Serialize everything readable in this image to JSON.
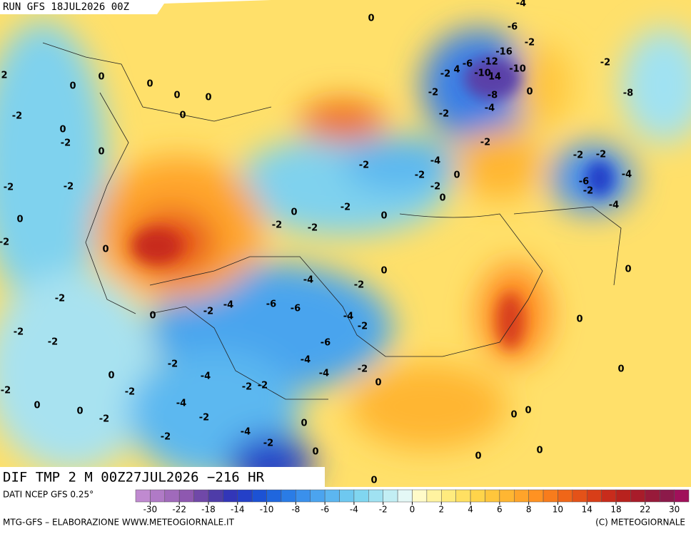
{
  "header": {
    "run": "RUN GFS 18JUL2026 00Z"
  },
  "map": {
    "contour_labels": [
      0,
      -4,
      -6,
      -2,
      -16,
      -12,
      -2,
      4,
      -6,
      -10,
      14,
      -10,
      0,
      -8,
      -4,
      -2,
      -2,
      -2,
      -2,
      -8,
      -2,
      -2,
      -6,
      -2,
      -4,
      -4,
      -4,
      -2,
      0,
      -2,
      0,
      -2,
      -2,
      0,
      -2,
      -2,
      0,
      -4,
      -2,
      0,
      -4,
      -2,
      -6,
      -6,
      -4,
      -2,
      -6,
      -4,
      -4,
      -2,
      0,
      -2,
      -4,
      -2,
      -2,
      -4,
      -2,
      -4,
      -2,
      -2,
      -2,
      -2,
      0,
      0,
      -2,
      -2,
      -2,
      0,
      0,
      0,
      -2,
      -2,
      -2,
      -2,
      0,
      0,
      0,
      0,
      0,
      0,
      0,
      0,
      2,
      0,
      0,
      0,
      0,
      0,
      0,
      0,
      0,
      0,
      0,
      0,
      -2,
      -2
    ]
  },
  "footer": {
    "title": "DIF TMP 2 M 00Z27JUL2026 −216 HR",
    "source": "DATI NCEP GFS 0.25°",
    "credit": "MTG-GFS – ELABORAZIONE WWW.METEOGIORNALE.IT",
    "copyright": "(C) METEOGIORNALE"
  },
  "legend": {
    "ticks": [
      -30,
      -22,
      -18,
      -14,
      -10,
      -8,
      -6,
      -4,
      -2,
      0,
      2,
      4,
      6,
      8,
      10,
      14,
      18,
      22,
      30
    ],
    "colors": [
      "#c08ad0",
      "#b07ac6",
      "#a06abb",
      "#8e58b0",
      "#7048a8",
      "#4e3ca8",
      "#3236b8",
      "#2440c8",
      "#1c52d4",
      "#1f66de",
      "#2a7ce6",
      "#3a90ec",
      "#4ba4ef",
      "#5cb6f0",
      "#6ec8f0",
      "#80d6f0",
      "#a0e2f2",
      "#c2eef4",
      "#e4f8f6",
      "#fffbc8",
      "#fff3a0",
      "#ffeb7e",
      "#ffe062",
      "#ffd44a",
      "#ffc63c",
      "#ffb632",
      "#ffa42a",
      "#ff9222",
      "#f87c1c",
      "#f06618",
      "#e45218",
      "#d83e18",
      "#c82c1c",
      "#b8221e",
      "#a81c2a",
      "#981a3a",
      "#8c1a4a",
      "#a0105a"
    ]
  }
}
